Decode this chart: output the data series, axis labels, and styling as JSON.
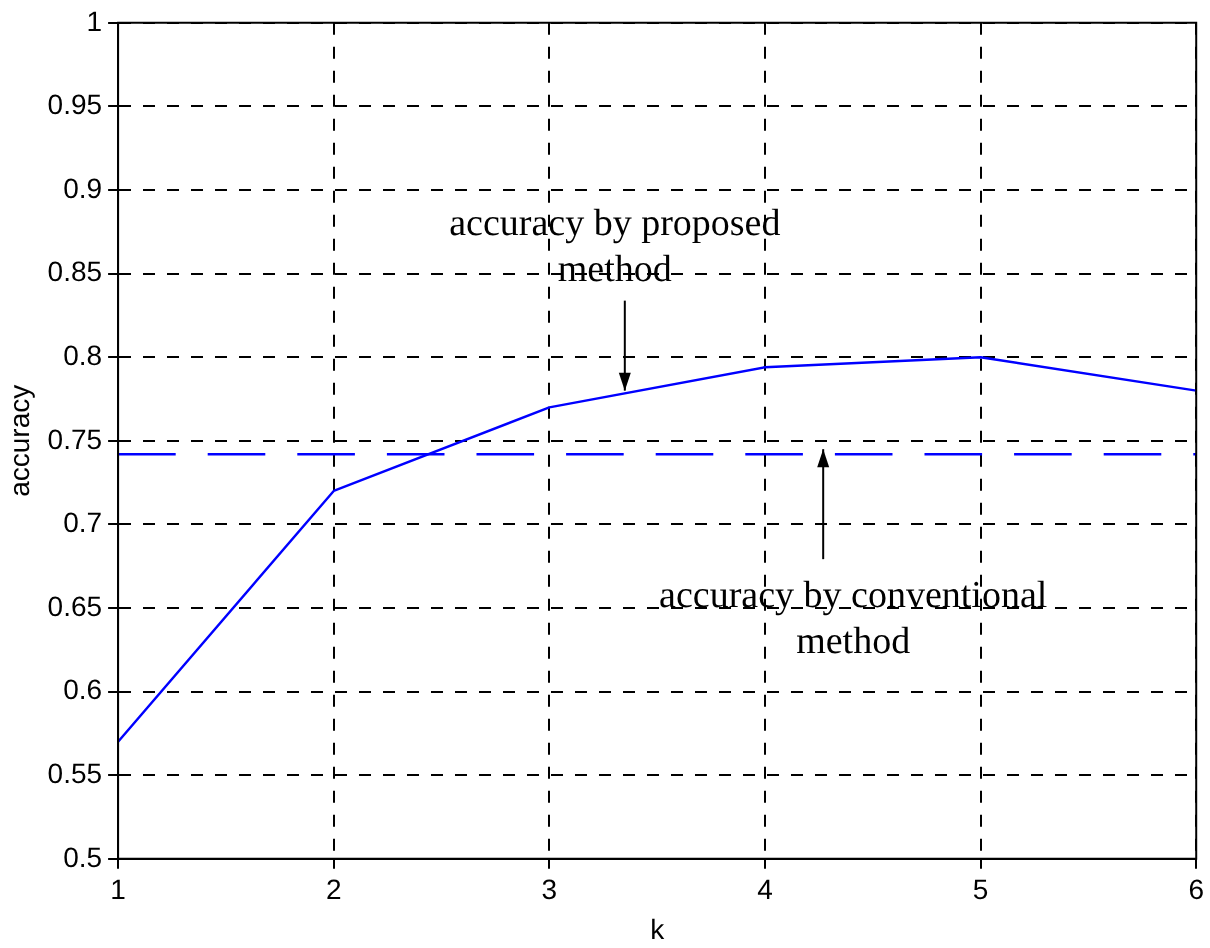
{
  "chart_data": {
    "type": "line",
    "xlabel": "k",
    "ylabel": "accuracy",
    "x": [
      1,
      2,
      3,
      4,
      5,
      6
    ],
    "series": [
      {
        "color": "#0000ff",
        "values": [
          0.57,
          0.72,
          0.77,
          0.794,
          0.8,
          0.78
        ]
      }
    ],
    "xlim": [
      1,
      6
    ],
    "xticks": [
      1,
      2,
      3,
      4,
      5,
      6
    ],
    "ylim": [
      0.5,
      1
    ],
    "yticks": [
      0.5,
      0.55,
      0.6,
      0.65,
      0.7,
      0.75,
      0.8,
      0.85,
      0.9,
      0.95,
      1
    ],
    "grid": true,
    "legend": false,
    "marker": "none",
    "line_style": "solid",
    "ref_lines": [
      {
        "axis": "y",
        "value": 0.742,
        "color": "#0000ff",
        "line_style": "dashed"
      }
    ],
    "annotations": [
      {
        "text": "accuracy by proposed\nmethod",
        "x": 3.35,
        "y": 0.78
      },
      {
        "text": "accuracy by conventional\nmethod",
        "x": 4.27,
        "y": 0.745
      }
    ]
  }
}
